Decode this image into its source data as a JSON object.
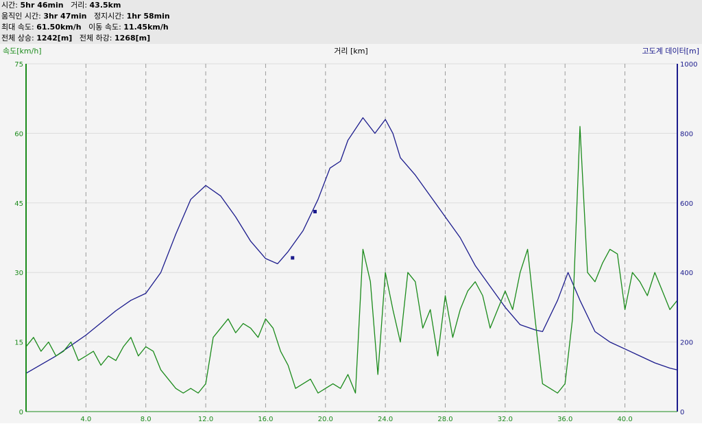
{
  "stats": {
    "time_label": "시간:",
    "time_value": "5hr 46min",
    "distance_label": "거리:",
    "distance_value": "43.5km",
    "moving_time_label": "움직인 시간:",
    "moving_time_value": "3hr 47min",
    "stopped_time_label": "정지시간:",
    "stopped_time_value": "1hr 58min",
    "max_speed_label": "최대 속도:",
    "max_speed_value": "61.50km/h",
    "moving_speed_label": "이동 속도:",
    "moving_speed_value": "11.45km/h",
    "total_ascent_label": "전체 상승:",
    "total_ascent_value": "1242[m]",
    "total_descent_label": "전체 하강:",
    "total_descent_value": "1268[m]"
  },
  "chart_data": {
    "type": "line",
    "xlabel": "거리 [km]",
    "xlim": [
      0,
      43.5
    ],
    "xticks": [
      4.0,
      8.0,
      12.0,
      16.0,
      20.0,
      24.0,
      28.0,
      32.0,
      36.0,
      40.0
    ],
    "x_tick_labels": [
      "4.0",
      "8.0",
      "12.0",
      "16.0",
      "20.0",
      "24.0",
      "28.0",
      "32.0",
      "36.0",
      "40.0"
    ],
    "grid": "vertical dashed",
    "y_left": {
      "label": "속도[km/h]",
      "ylim": [
        0,
        75
      ],
      "ticks": [
        0,
        15,
        30,
        45,
        60,
        75
      ],
      "color": "#1a8a1a"
    },
    "y_right": {
      "label": "고도계 데이터[m]",
      "ylim": [
        0,
        1000
      ],
      "ticks": [
        0,
        200,
        400,
        600,
        800,
        1000
      ],
      "color": "#1a1a8c"
    },
    "series": [
      {
        "axis": "right",
        "color": "#1a1a8c",
        "x": [
          0,
          1,
          2,
          3,
          4,
          5,
          6,
          7,
          8,
          9,
          10,
          11,
          12,
          13,
          14,
          15,
          16,
          16.8,
          17.5,
          18.5,
          19.5,
          20.3,
          21,
          21.5,
          22.5,
          23.3,
          24,
          24.5,
          25,
          26,
          27,
          28,
          29,
          30,
          31,
          32,
          33,
          34,
          34.5,
          35.5,
          36.2,
          37,
          38,
          39,
          40,
          41,
          42,
          43,
          43.5
        ],
        "y": [
          110,
          135,
          160,
          190,
          220,
          255,
          290,
          320,
          340,
          400,
          510,
          610,
          650,
          620,
          560,
          490,
          440,
          425,
          460,
          520,
          610,
          700,
          720,
          780,
          845,
          800,
          840,
          800,
          730,
          680,
          620,
          560,
          500,
          420,
          360,
          300,
          250,
          235,
          230,
          320,
          400,
          320,
          230,
          200,
          180,
          160,
          140,
          125,
          120
        ]
      },
      {
        "axis": "left",
        "color": "#1a8a1a",
        "x": [
          0,
          0.5,
          1,
          1.5,
          2,
          2.5,
          3,
          3.5,
          4,
          4.5,
          5,
          5.5,
          6,
          6.5,
          7,
          7.5,
          8,
          8.5,
          9,
          9.5,
          10,
          10.5,
          11,
          11.5,
          12,
          12.5,
          13,
          13.5,
          14,
          14.5,
          15,
          15.5,
          16,
          16.5,
          17,
          17.5,
          18,
          18.5,
          19,
          19.5,
          20,
          20.5,
          21,
          21.5,
          22,
          22.5,
          23,
          23.5,
          24,
          24.5,
          25,
          25.5,
          26,
          26.5,
          27,
          27.5,
          28,
          28.5,
          29,
          29.5,
          30,
          30.5,
          31,
          31.5,
          32,
          32.5,
          33,
          33.5,
          34,
          34.5,
          35,
          35.5,
          36,
          36.5,
          37,
          37.5,
          38,
          38.5,
          39,
          39.5,
          40,
          40.5,
          41,
          41.5,
          42,
          42.5,
          43,
          43.5
        ],
        "y": [
          14,
          16,
          13,
          15,
          12,
          13,
          15,
          11,
          12,
          13,
          10,
          12,
          11,
          14,
          16,
          12,
          14,
          13,
          9,
          7,
          5,
          4,
          5,
          4,
          6,
          16,
          18,
          20,
          17,
          19,
          18,
          16,
          20,
          18,
          13,
          10,
          5,
          6,
          7,
          4,
          5,
          6,
          5,
          8,
          4,
          35,
          28,
          8,
          30,
          22,
          15,
          30,
          28,
          18,
          22,
          12,
          25,
          16,
          22,
          26,
          28,
          25,
          18,
          22,
          26,
          22,
          30,
          35,
          20,
          6,
          5,
          4,
          6,
          20,
          61.5,
          30,
          28,
          32,
          35,
          34,
          22,
          30,
          28,
          25,
          30,
          26,
          22,
          24
        ]
      }
    ],
    "markers": [
      {
        "series": 0,
        "x": 17.8,
        "y": 442
      },
      {
        "series": 0,
        "x": 19.3,
        "y": 575
      }
    ]
  }
}
